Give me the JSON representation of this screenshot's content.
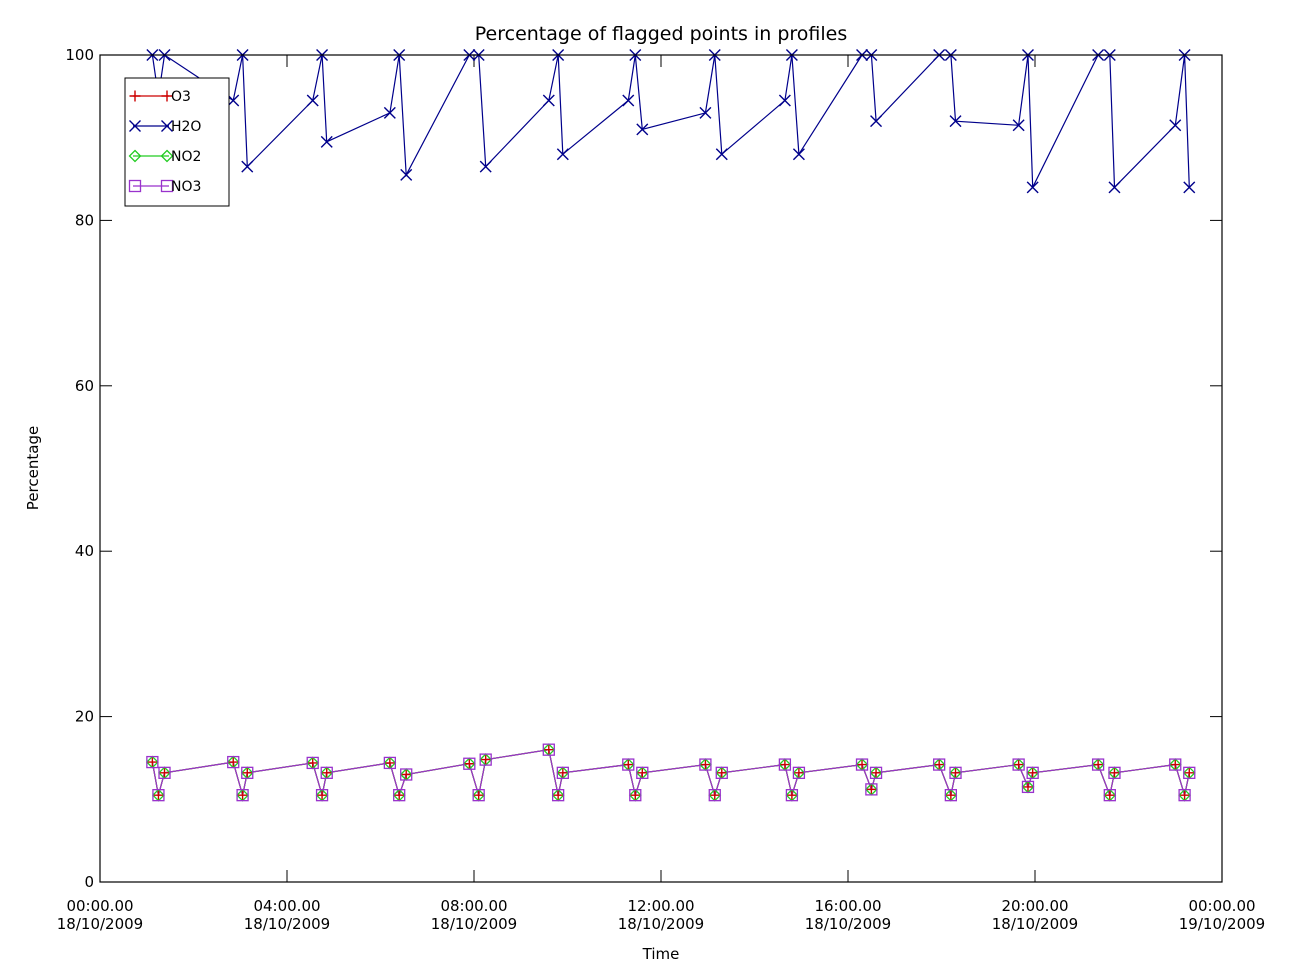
{
  "chart_data": {
    "type": "line",
    "title": "Percentage of flagged points in profiles",
    "xlabel": "Time",
    "ylabel": "Percentage",
    "xlim": [
      0,
      24
    ],
    "ylim": [
      0,
      100
    ],
    "grid": false,
    "legend_position": "top-left",
    "x_ticks": [
      {
        "value": 0,
        "line1": "00:00.00",
        "line2": "18/10/2009"
      },
      {
        "value": 4,
        "line1": "04:00.00",
        "line2": "18/10/2009"
      },
      {
        "value": 8,
        "line1": "08:00.00",
        "line2": "18/10/2009"
      },
      {
        "value": 12,
        "line1": "12:00.00",
        "line2": "18/10/2009"
      },
      {
        "value": 16,
        "line1": "16:00.00",
        "line2": "18/10/2009"
      },
      {
        "value": 20,
        "line1": "20:00.00",
        "line2": "18/10/2009"
      },
      {
        "value": 24,
        "line1": "00:00.00",
        "line2": "19/10/2009"
      }
    ],
    "y_ticks": [
      {
        "value": 0,
        "label": "0"
      },
      {
        "value": 20,
        "label": "20"
      },
      {
        "value": 40,
        "label": "40"
      },
      {
        "value": 60,
        "label": "60"
      },
      {
        "value": 80,
        "label": "80"
      },
      {
        "value": 100,
        "label": "100"
      }
    ],
    "series": [
      {
        "name": "O3",
        "color": "#cc0000",
        "marker": "plus",
        "x": [
          1.12,
          1.25,
          1.38,
          2.85,
          3.05,
          3.15,
          4.55,
          4.75,
          4.85,
          6.2,
          6.4,
          6.55,
          7.9,
          8.1,
          8.25,
          9.6,
          9.8,
          9.9,
          11.3,
          11.45,
          11.6,
          12.95,
          13.15,
          13.3,
          14.65,
          14.8,
          14.95,
          16.3,
          16.5,
          16.6,
          17.95,
          18.2,
          18.3,
          19.65,
          19.85,
          19.95,
          21.35,
          21.6,
          21.7,
          23.0,
          23.2,
          23.3
        ],
        "y": [
          14.5,
          10.5,
          13.2,
          14.5,
          10.5,
          13.2,
          14.4,
          10.5,
          13.2,
          14.4,
          10.5,
          13.0,
          14.3,
          10.5,
          14.8,
          16.0,
          10.5,
          13.2,
          14.2,
          10.5,
          13.2,
          14.2,
          10.5,
          13.2,
          14.2,
          10.5,
          13.2,
          14.2,
          11.2,
          13.2,
          14.2,
          10.5,
          13.2,
          14.2,
          11.5,
          13.2,
          14.2,
          10.5,
          13.2,
          14.2,
          10.5,
          13.2
        ]
      },
      {
        "name": "H2O",
        "color": "#00008b",
        "marker": "x",
        "x": [
          1.12,
          1.25,
          1.38,
          2.85,
          3.05,
          3.15,
          4.55,
          4.75,
          4.85,
          6.2,
          6.4,
          6.55,
          7.9,
          8.1,
          8.25,
          9.6,
          9.8,
          9.9,
          11.3,
          11.45,
          11.6,
          12.95,
          13.15,
          13.3,
          14.65,
          14.8,
          14.95,
          16.3,
          16.5,
          16.6,
          17.95,
          18.2,
          18.3,
          19.65,
          19.85,
          19.95,
          21.35,
          21.6,
          21.7,
          23.0,
          23.2,
          23.3
        ],
        "y": [
          100,
          95,
          100,
          94.5,
          100,
          86.5,
          94.5,
          100,
          89.5,
          93,
          100,
          85.5,
          100,
          100,
          86.5,
          94.5,
          100,
          88,
          94.5,
          100,
          91,
          93,
          100,
          88,
          94.5,
          100,
          88,
          100,
          100,
          92,
          100,
          100,
          92,
          91.5,
          100,
          84,
          100,
          100,
          84,
          91.5,
          100,
          84
        ]
      },
      {
        "name": "NO2",
        "color": "#22cc22",
        "marker": "diamond",
        "x": [
          1.12,
          1.25,
          1.38,
          2.85,
          3.05,
          3.15,
          4.55,
          4.75,
          4.85,
          6.2,
          6.4,
          6.55,
          7.9,
          8.1,
          8.25,
          9.6,
          9.8,
          9.9,
          11.3,
          11.45,
          11.6,
          12.95,
          13.15,
          13.3,
          14.65,
          14.8,
          14.95,
          16.3,
          16.5,
          16.6,
          17.95,
          18.2,
          18.3,
          19.65,
          19.85,
          19.95,
          21.35,
          21.6,
          21.7,
          23.0,
          23.2,
          23.3
        ],
        "y": [
          14.5,
          10.5,
          13.2,
          14.5,
          10.5,
          13.2,
          14.4,
          10.5,
          13.2,
          14.4,
          10.5,
          13.0,
          14.3,
          10.5,
          14.8,
          16.0,
          10.5,
          13.2,
          14.2,
          10.5,
          13.2,
          14.2,
          10.5,
          13.2,
          14.2,
          10.5,
          13.2,
          14.2,
          11.2,
          13.2,
          14.2,
          10.5,
          13.2,
          14.2,
          11.5,
          13.2,
          14.2,
          10.5,
          13.2,
          14.2,
          10.5,
          13.2
        ]
      },
      {
        "name": "NO3",
        "color": "#9932cc",
        "marker": "square",
        "x": [
          1.12,
          1.25,
          1.38,
          2.85,
          3.05,
          3.15,
          4.55,
          4.75,
          4.85,
          6.2,
          6.4,
          6.55,
          7.9,
          8.1,
          8.25,
          9.6,
          9.8,
          9.9,
          11.3,
          11.45,
          11.6,
          12.95,
          13.15,
          13.3,
          14.65,
          14.8,
          14.95,
          16.3,
          16.5,
          16.6,
          17.95,
          18.2,
          18.3,
          19.65,
          19.85,
          19.95,
          21.35,
          21.6,
          21.7,
          23.0,
          23.2,
          23.3
        ],
        "y": [
          14.5,
          10.5,
          13.2,
          14.5,
          10.5,
          13.2,
          14.4,
          10.5,
          13.2,
          14.4,
          10.5,
          13.0,
          14.3,
          10.5,
          14.8,
          16.0,
          10.5,
          13.2,
          14.2,
          10.5,
          13.2,
          14.2,
          10.5,
          13.2,
          14.2,
          10.5,
          13.2,
          14.2,
          11.2,
          13.2,
          14.2,
          10.5,
          13.2,
          14.2,
          11.5,
          13.2,
          14.2,
          10.5,
          13.2,
          14.2,
          10.5,
          13.2
        ]
      }
    ]
  }
}
